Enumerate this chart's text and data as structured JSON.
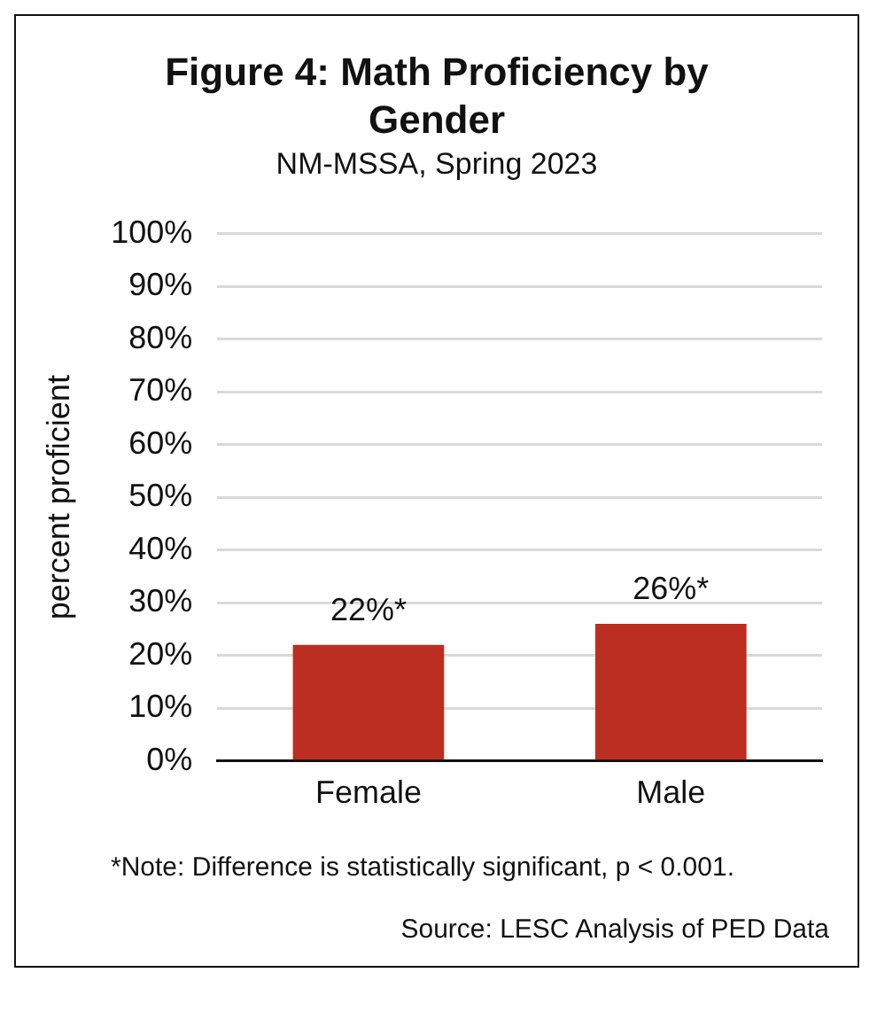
{
  "chart_data": {
    "type": "bar",
    "title": "Figure 4: Math Proficiency by Gender",
    "subtitle": "NM-MSSA, Spring 2023",
    "ylabel": "percent proficient",
    "categories": [
      "Female",
      "Male"
    ],
    "values": [
      22,
      26
    ],
    "color": "#bb2e21",
    "value_labels": [
      "22%*",
      "26%*"
    ],
    "ylim": [
      0,
      100
    ],
    "yticks": [
      {
        "value": 0,
        "label": "0%"
      },
      {
        "value": 10,
        "label": "10%"
      },
      {
        "value": 20,
        "label": "20%"
      },
      {
        "value": 30,
        "label": "30%"
      },
      {
        "value": 40,
        "label": "40%"
      },
      {
        "value": 50,
        "label": "50%"
      },
      {
        "value": 60,
        "label": "60%"
      },
      {
        "value": 70,
        "label": "70%"
      },
      {
        "value": 80,
        "label": "80%"
      },
      {
        "value": 90,
        "label": "90%"
      },
      {
        "value": 100,
        "label": "100%"
      }
    ],
    "grid": "y",
    "legend": false,
    "annotations": [
      "*Note: Difference is statistically significant, p < 0.001.",
      "Source: LESC Analysis of PED Data"
    ]
  }
}
